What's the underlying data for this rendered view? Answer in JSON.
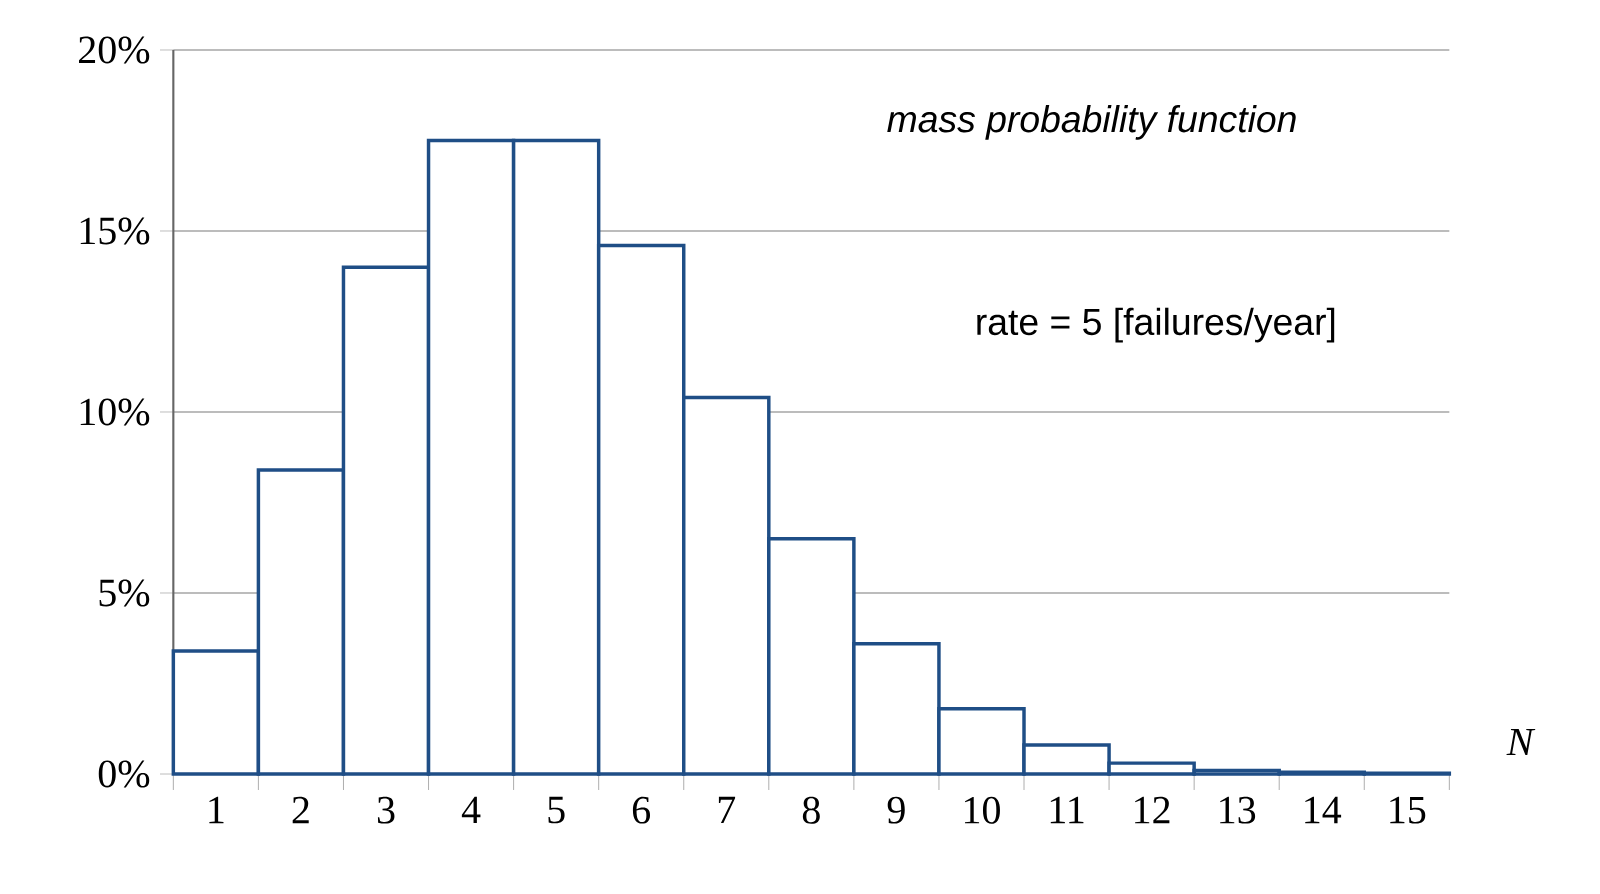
{
  "chart_data": {
    "type": "bar",
    "xlabel": "N",
    "categories": [
      "1",
      "2",
      "3",
      "4",
      "5",
      "6",
      "7",
      "8",
      "9",
      "10",
      "11",
      "12",
      "13",
      "14",
      "15"
    ],
    "values": [
      3.4,
      8.4,
      14.0,
      17.5,
      17.5,
      14.6,
      10.4,
      6.5,
      3.6,
      1.8,
      0.8,
      0.3,
      0.1,
      0.05,
      0.02
    ],
    "color": "#1f4e86",
    "ylim": [
      0,
      20
    ],
    "yticks": [
      {
        "value": 0,
        "label": "0%"
      },
      {
        "value": 5,
        "label": "5%"
      },
      {
        "value": 10,
        "label": "10%"
      },
      {
        "value": 15,
        "label": "15%"
      },
      {
        "value": 20,
        "label": "20%"
      }
    ],
    "grid": "y",
    "annotations": [
      "mass probability function",
      "rate = 5 [failures/year]"
    ]
  }
}
